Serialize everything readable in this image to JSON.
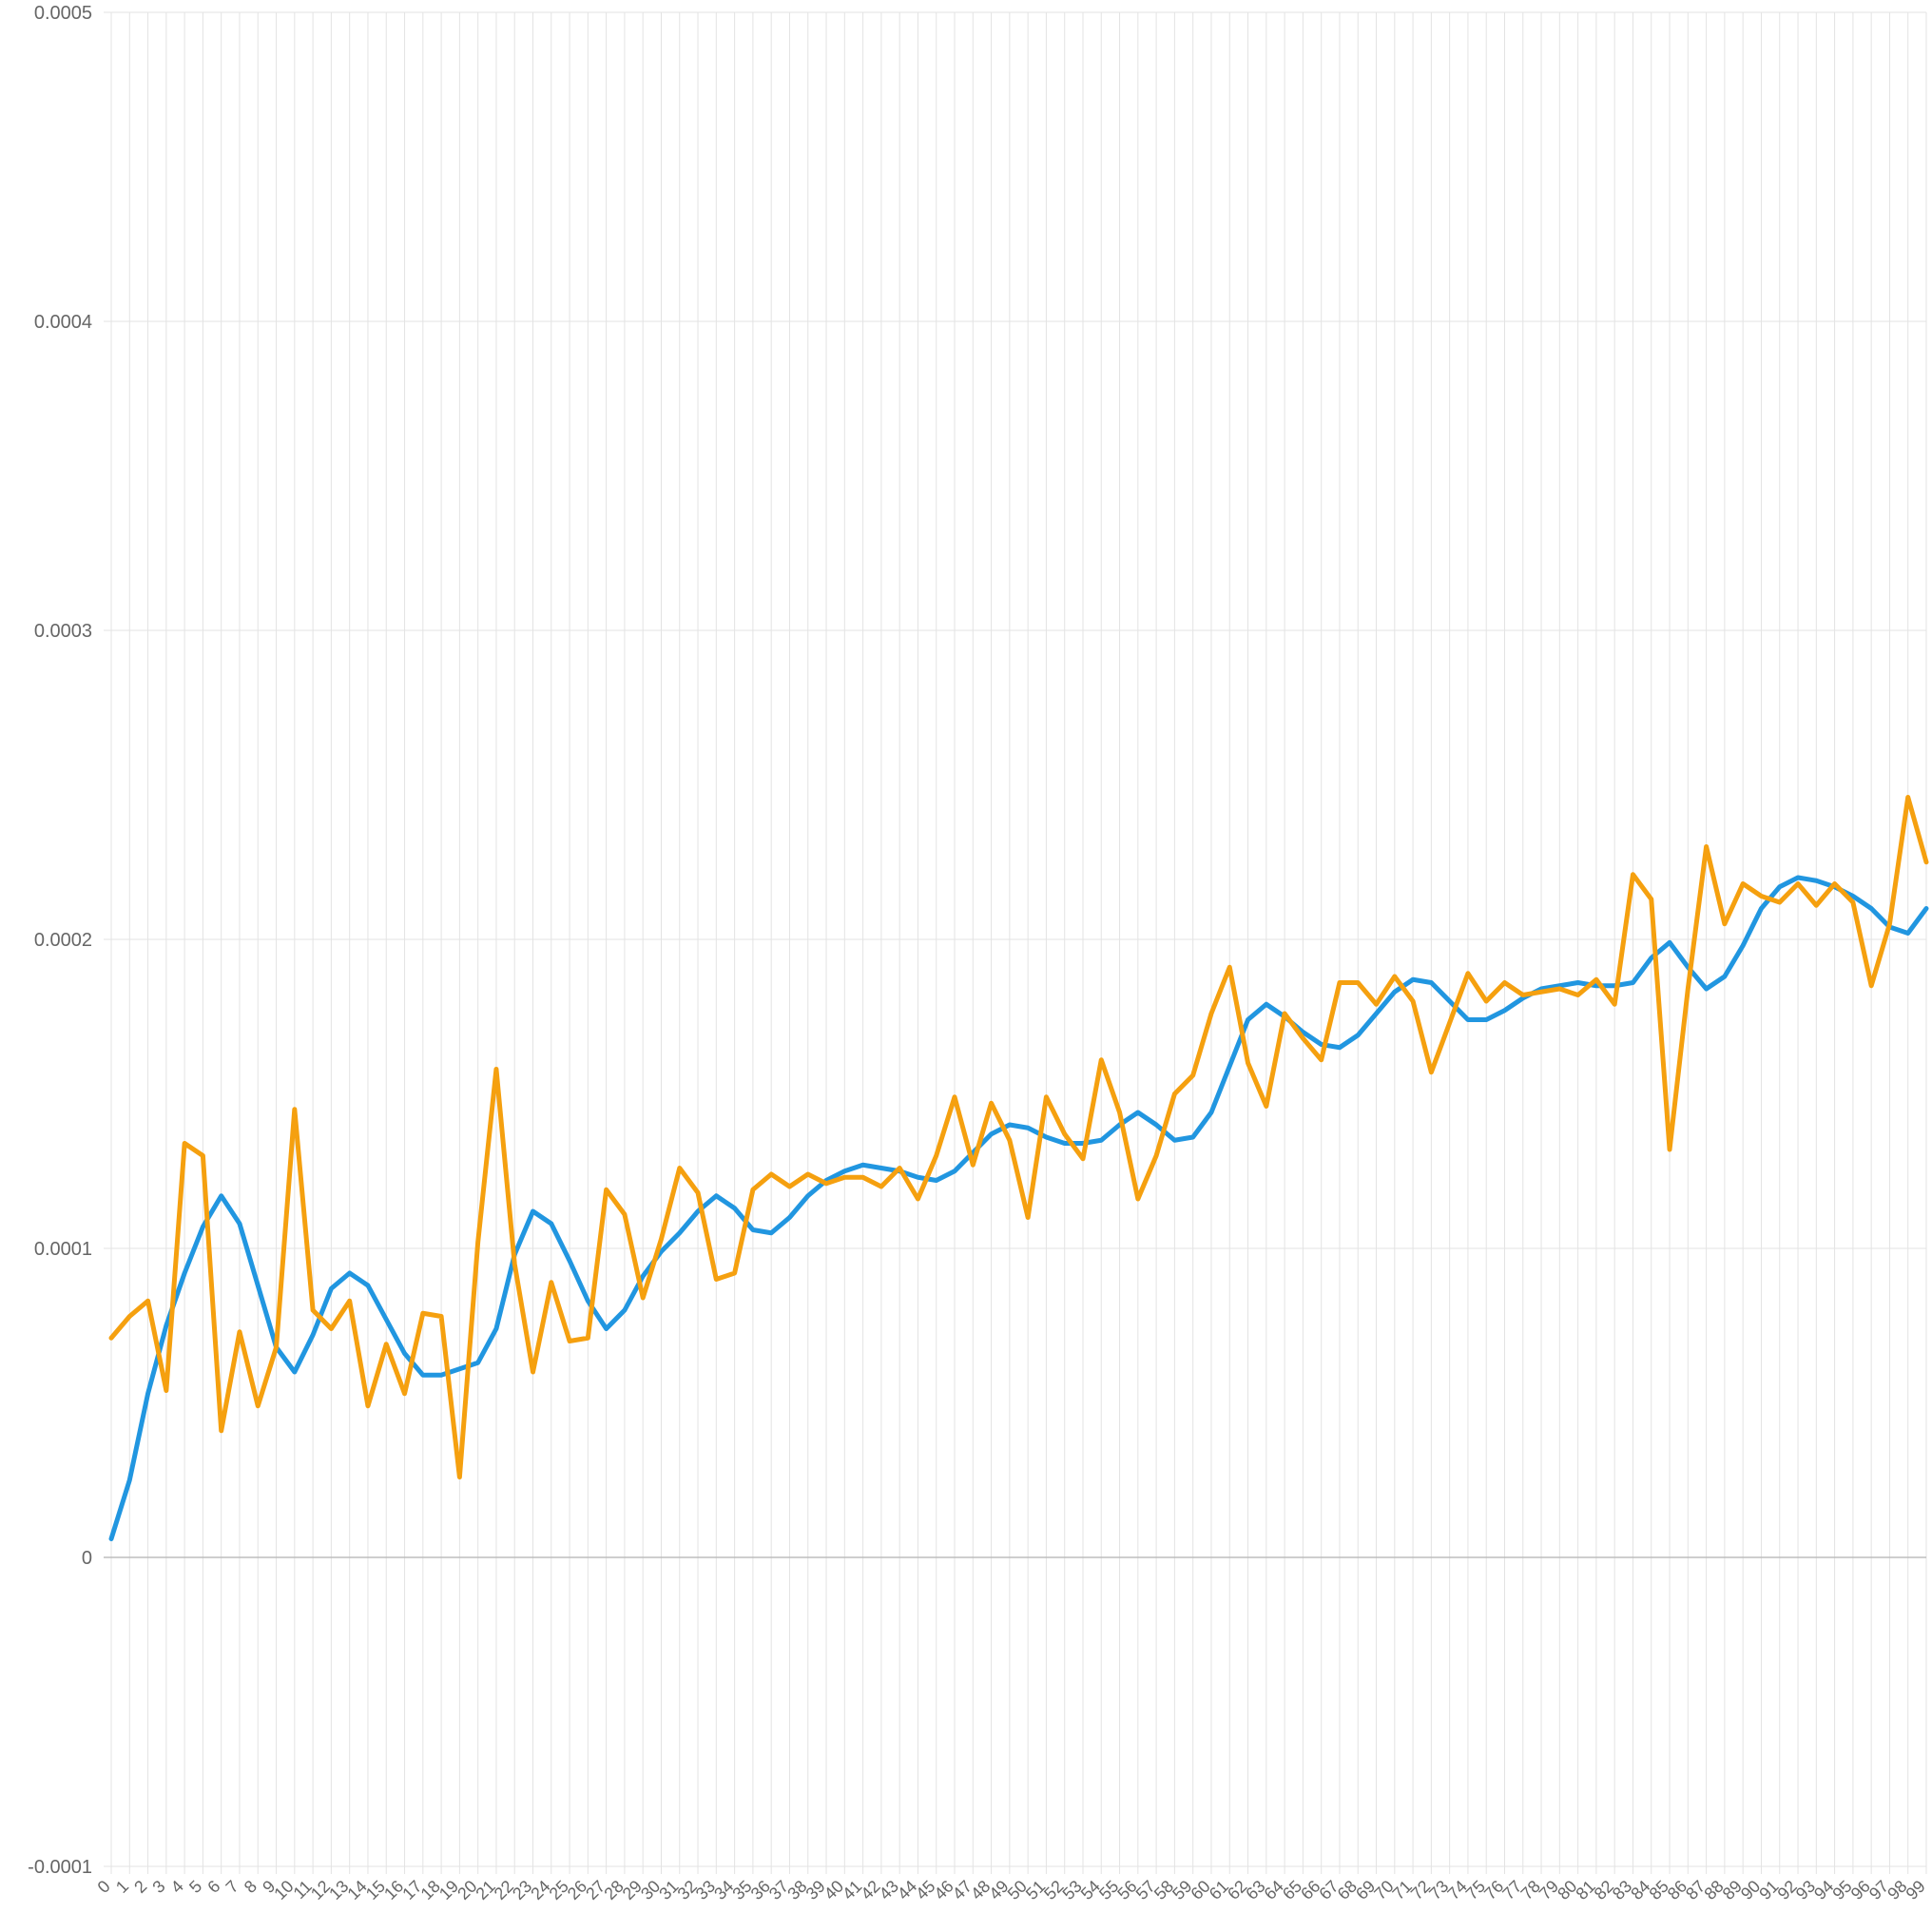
{
  "chart_data": {
    "type": "line",
    "title": "",
    "xlabel": "",
    "ylabel": "",
    "ylim": [
      -0.0001,
      0.0005
    ],
    "yticks": [
      -0.0001,
      0,
      0.0001,
      0.0002,
      0.0003,
      0.0004,
      0.0005
    ],
    "ytick_labels": [
      "-0.0001",
      "0",
      "0.0001",
      "0.0002",
      "0.0003",
      "0.0004",
      "0.0005"
    ],
    "grid": true,
    "legend": "none",
    "x": [
      0,
      1,
      2,
      3,
      4,
      5,
      6,
      7,
      8,
      9,
      10,
      11,
      12,
      13,
      14,
      15,
      16,
      17,
      18,
      19,
      20,
      21,
      22,
      23,
      24,
      25,
      26,
      27,
      28,
      29,
      30,
      31,
      32,
      33,
      34,
      35,
      36,
      37,
      38,
      39,
      40,
      41,
      42,
      43,
      44,
      45,
      46,
      47,
      48,
      49,
      50,
      51,
      52,
      53,
      54,
      55,
      56,
      57,
      58,
      59,
      60,
      61,
      62,
      63,
      64,
      65,
      66,
      67,
      68,
      69,
      70,
      71,
      72,
      73,
      74,
      75,
      76,
      77,
      78,
      79,
      80,
      81,
      82,
      83,
      84,
      85,
      86,
      87,
      88,
      89,
      90,
      91,
      92,
      93,
      94,
      95,
      96,
      97,
      98,
      99
    ],
    "series": [
      {
        "color": "#2196E0",
        "values": [
          6e-06,
          2.5e-05,
          5.3e-05,
          7.5e-05,
          9.2e-05,
          0.000107,
          0.000117,
          0.000108,
          8.8e-05,
          6.8e-05,
          6e-05,
          7.2e-05,
          8.7e-05,
          9.2e-05,
          8.8e-05,
          7.7e-05,
          6.6e-05,
          5.9e-05,
          5.9e-05,
          6.1e-05,
          6.3e-05,
          7.4e-05,
          9.8e-05,
          0.000112,
          0.000108,
          9.6e-05,
          8.3e-05,
          7.4e-05,
          8e-05,
          9.1e-05,
          9.9e-05,
          0.000105,
          0.000112,
          0.000117,
          0.000113,
          0.000106,
          0.000105,
          0.00011,
          0.000117,
          0.000122,
          0.000125,
          0.000127,
          0.000126,
          0.000125,
          0.000123,
          0.000122,
          0.000125,
          0.000131,
          0.000137,
          0.00014,
          0.000139,
          0.000136,
          0.000134,
          0.000134,
          0.000135,
          0.00014,
          0.000144,
          0.00014,
          0.000135,
          0.000136,
          0.000144,
          0.000159,
          0.000174,
          0.000179,
          0.000175,
          0.00017,
          0.000166,
          0.000165,
          0.000169,
          0.000176,
          0.000183,
          0.000187,
          0.000186,
          0.00018,
          0.000174,
          0.000174,
          0.000177,
          0.000181,
          0.000184,
          0.000185,
          0.000186,
          0.000185,
          0.000185,
          0.000186,
          0.000194,
          0.000199,
          0.000191,
          0.000184,
          0.000188,
          0.000198,
          0.00021,
          0.000217,
          0.00022,
          0.000219,
          0.000217,
          0.000214,
          0.00021,
          0.000204,
          0.000202,
          0.00021
        ]
      },
      {
        "color": "#F5A00F",
        "values": [
          7.1e-05,
          7.8e-05,
          8.3e-05,
          5.4e-05,
          0.000134,
          0.00013,
          4.1e-05,
          7.3e-05,
          4.9e-05,
          6.8e-05,
          0.000145,
          8e-05,
          7.4e-05,
          8.3e-05,
          4.9e-05,
          6.9e-05,
          5.3e-05,
          7.9e-05,
          7.8e-05,
          2.6e-05,
          0.000102,
          0.000158,
          9.5e-05,
          6e-05,
          8.9e-05,
          7e-05,
          7.1e-05,
          0.000119,
          0.000111,
          8.4e-05,
          0.000103,
          0.000126,
          0.000118,
          9e-05,
          9.2e-05,
          0.000119,
          0.000124,
          0.00012,
          0.000124,
          0.000121,
          0.000123,
          0.000123,
          0.00012,
          0.000126,
          0.000116,
          0.00013,
          0.000149,
          0.000127,
          0.000147,
          0.000135,
          0.00011,
          0.000149,
          0.000137,
          0.000129,
          0.000161,
          0.000144,
          0.000116,
          0.00013,
          0.00015,
          0.000156,
          0.000176,
          0.000191,
          0.00016,
          0.000146,
          0.000176,
          0.000168,
          0.000161,
          0.000186,
          0.000186,
          0.000179,
          0.000188,
          0.00018,
          0.000157,
          0.000173,
          0.000189,
          0.00018,
          0.000186,
          0.000182,
          0.000183,
          0.000184,
          0.000182,
          0.000187,
          0.000179,
          0.000221,
          0.000213,
          0.000132,
          0.000184,
          0.00023,
          0.000205,
          0.000218,
          0.000214,
          0.000212,
          0.000218,
          0.000211,
          0.000218,
          0.000212,
          0.000185,
          0.000205,
          0.000246,
          0.000225
        ]
      }
    ]
  }
}
